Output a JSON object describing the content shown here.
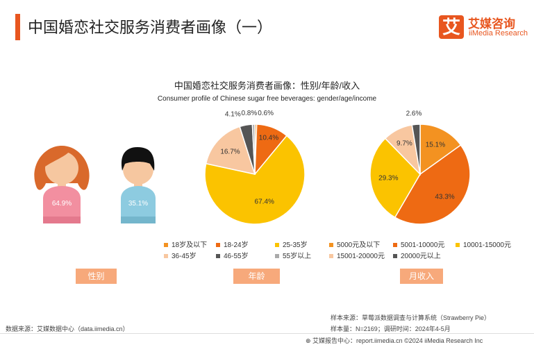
{
  "header": {
    "title": "中国婚恋社交服务消费者画像（一）",
    "logo_mark": "艾",
    "logo_cn": "艾媒咨询",
    "logo_en": "iiMedia Research"
  },
  "chart_heading": {
    "title": "中国婚恋社交服务消费者画像：性别/年龄/收入",
    "subtitle": "Consumer profile of Chinese sugar free beverages: gender/age/income"
  },
  "chart_data": [
    {
      "type": "pictogram",
      "categories": [
        "女",
        "男"
      ],
      "values": [
        64.9,
        35.1
      ],
      "labels": [
        "64.9%",
        "35.1%"
      ],
      "tag": "性别"
    },
    {
      "type": "pie",
      "categories": [
        "18岁及以下",
        "18-24岁",
        "25-35岁",
        "36-45岁",
        "46-55岁",
        "55岁以上"
      ],
      "values": [
        0.6,
        10.4,
        67.4,
        16.7,
        4.1,
        0.8
      ],
      "labels": [
        "0.6%",
        "10.4%",
        "67.4%",
        "16.7%",
        "4.1%",
        "0.8%"
      ],
      "colors": [
        "#f39221",
        "#ee6a13",
        "#fbc300",
        "#f8c7a0",
        "#555555",
        "#aaaaaa"
      ],
      "tag": "年龄"
    },
    {
      "type": "pie",
      "categories": [
        "5000元及以下",
        "5001-10000元",
        "10001-15000元",
        "15001-20000元",
        "20000元以上"
      ],
      "values": [
        15.1,
        43.3,
        29.3,
        9.7,
        2.6
      ],
      "labels": [
        "15.1%",
        "43.3%",
        "29.3%",
        "9.7%",
        "2.6%"
      ],
      "colors": [
        "#f39221",
        "#ee6a13",
        "#fbc300",
        "#f8c7a0",
        "#555555"
      ],
      "tag": "月收入"
    }
  ],
  "footer": {
    "source_left": "数据来源：艾媒数据中心（data.iimedia.cn）",
    "sample_source": "样本来源：草莓派数据调查与计算系统（Strawberry Pie）",
    "sample_info": "样本量：N=2169；调研时间：2024年4-5月",
    "bottom_line": "艾媒报告中心：report.iimedia.cn  ©2024  iiMedia Research Inc"
  }
}
